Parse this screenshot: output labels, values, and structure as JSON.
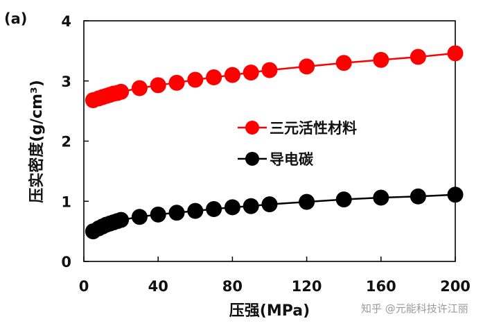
{
  "chart_data": {
    "type": "line",
    "panel_label": "(a)",
    "xlabel": "压强(MPa)",
    "ylabel": "压实密度(g/cm³)",
    "xlim": [
      0,
      200
    ],
    "ylim": [
      0,
      4
    ],
    "xticks": [
      "0",
      "40",
      "80",
      "120",
      "160",
      "200"
    ],
    "yticks": [
      "0",
      "1",
      "2",
      "3",
      "4"
    ],
    "grid": false,
    "legend_position": "center-right",
    "series": [
      {
        "name": "三元活性材料",
        "color": "#ff0000",
        "marker": "circle",
        "x": [
          5,
          8,
          10,
          12,
          14,
          16,
          18,
          20,
          30,
          40,
          50,
          60,
          70,
          80,
          90,
          100,
          120,
          140,
          160,
          180,
          200
        ],
        "y": [
          2.68,
          2.71,
          2.73,
          2.75,
          2.77,
          2.79,
          2.8,
          2.82,
          2.88,
          2.93,
          2.97,
          3.02,
          3.06,
          3.1,
          3.14,
          3.18,
          3.24,
          3.3,
          3.35,
          3.4,
          3.46
        ]
      },
      {
        "name": "导电碳",
        "color": "#000000",
        "marker": "circle",
        "x": [
          5,
          8,
          10,
          12,
          14,
          16,
          18,
          20,
          30,
          40,
          50,
          60,
          70,
          80,
          90,
          100,
          120,
          140,
          160,
          180,
          200
        ],
        "y": [
          0.5,
          0.55,
          0.58,
          0.61,
          0.63,
          0.65,
          0.67,
          0.69,
          0.74,
          0.78,
          0.81,
          0.84,
          0.87,
          0.9,
          0.92,
          0.95,
          0.99,
          1.03,
          1.06,
          1.08,
          1.11
        ]
      }
    ]
  },
  "watermark": "知乎 @元能科技许江丽"
}
